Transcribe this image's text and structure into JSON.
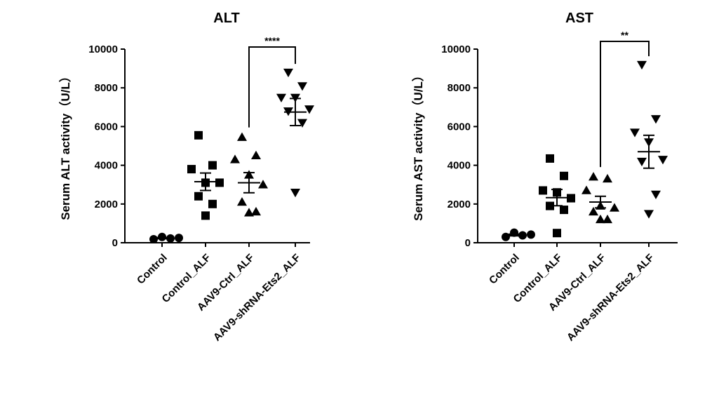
{
  "chart_data": [
    {
      "type": "scatter",
      "title": "ALT",
      "ylabel": "Serum ALT activity（U/L）",
      "ylim": [
        0,
        10000
      ],
      "yticks": [
        "0",
        "2000",
        "4000",
        "6000",
        "8000",
        "10000"
      ],
      "categories": [
        "Control",
        "Control_ALF",
        "AAV9-Ctrl_ALF",
        "AAV9-shRNA-Ets2_ALF"
      ],
      "series": [
        {
          "name": "Control",
          "marker": "circle",
          "values": [
            180,
            300,
            220,
            250
          ],
          "mean": 240,
          "sem": 30
        },
        {
          "name": "Control_ALF",
          "marker": "square",
          "values": [
            5550,
            4000,
            3800,
            3100,
            3100,
            2400,
            2000,
            1400
          ],
          "mean": 3150,
          "sem": 450
        },
        {
          "name": "AAV9-Ctrl_ALF",
          "marker": "triangle-up",
          "values": [
            5450,
            4500,
            4300,
            3500,
            3000,
            2100,
            1600,
            1550
          ],
          "mean": 3100,
          "sem": 520
        },
        {
          "name": "AAV9-shRNA-Ets2_ALF",
          "marker": "triangle-down",
          "values": [
            8800,
            8100,
            7500,
            7500,
            6900,
            6800,
            6200,
            2600
          ],
          "mean": 6750,
          "sem": 700
        }
      ],
      "significance": {
        "from": "AAV9-Ctrl_ALF",
        "to": "AAV9-shRNA-Ets2_ALF",
        "label": "****"
      }
    },
    {
      "type": "scatter",
      "title": "AST",
      "ylabel": "Serum AST activity（U/L）",
      "ylim": [
        0,
        10000
      ],
      "yticks": [
        "0",
        "2000",
        "4000",
        "6000",
        "8000",
        "10000"
      ],
      "categories": [
        "Control",
        "Control_ALF",
        "AAV9-Ctrl_ALF",
        "AAV9-shRNA-Ets2_ALF"
      ],
      "series": [
        {
          "name": "Control",
          "marker": "circle",
          "values": [
            300,
            520,
            380,
            420
          ],
          "mean": 400,
          "sem": 45
        },
        {
          "name": "Control_ALF",
          "marker": "square",
          "values": [
            4350,
            3450,
            2700,
            2600,
            2300,
            1900,
            1700,
            500
          ],
          "mean": 2330,
          "sem": 420
        },
        {
          "name": "AAV9-Ctrl_ALF",
          "marker": "triangle-up",
          "values": [
            3400,
            3300,
            2700,
            1900,
            1800,
            1600,
            1200,
            1200
          ],
          "mean": 2100,
          "sem": 300
        },
        {
          "name": "AAV9-shRNA-Ets2_ALF",
          "marker": "triangle-down",
          "values": [
            9200,
            6400,
            5700,
            5200,
            4300,
            4200,
            2500,
            1500
          ],
          "mean": 4700,
          "sem": 850
        }
      ],
      "significance": {
        "from": "AAV9-Ctrl_ALF",
        "to": "AAV9-shRNA-Ets2_ALF",
        "label": "**"
      }
    }
  ]
}
